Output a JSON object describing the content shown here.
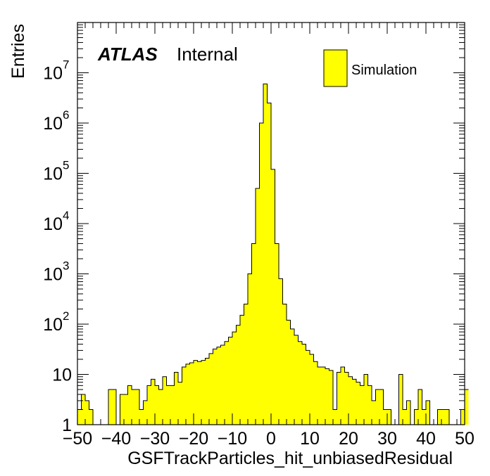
{
  "chart_data": {
    "type": "bar",
    "histogram": true,
    "xlabel": "GSFTrackParticles_hit_unbiasedResidual",
    "ylabel": "Entries",
    "xlim": [
      -50,
      50
    ],
    "ylim": [
      1,
      100000000
    ],
    "yscale": "log",
    "bin_width": 1,
    "x_ticks": [
      "−50",
      "−40",
      "−30",
      "−20",
      "−10",
      "0",
      "10",
      "20",
      "30",
      "40",
      "50"
    ],
    "y_ticks": [
      {
        "base": "1",
        "exp": ""
      },
      {
        "base": "10",
        "exp": ""
      },
      {
        "base": "10",
        "exp": "2"
      },
      {
        "base": "10",
        "exp": "3"
      },
      {
        "base": "10",
        "exp": "4"
      },
      {
        "base": "10",
        "exp": "5"
      },
      {
        "base": "10",
        "exp": "6"
      },
      {
        "base": "10",
        "exp": "7"
      }
    ],
    "bin_edges_start": -50,
    "values": [
      2,
      4,
      3,
      2,
      1,
      0,
      0,
      1,
      5,
      5,
      1,
      4,
      4,
      6,
      5,
      5,
      2,
      3,
      6,
      8,
      6,
      5,
      9,
      6,
      6,
      11,
      7,
      14,
      16,
      17,
      19,
      18,
      19,
      21,
      26,
      32,
      35,
      38,
      45,
      55,
      70,
      95,
      150,
      250,
      1000,
      4000,
      50000,
      1000000,
      6000000,
      2500000,
      120000,
      4000,
      800,
      250,
      120,
      80,
      60,
      45,
      40,
      30,
      25,
      18,
      14,
      14,
      13,
      12,
      2,
      11,
      14,
      11,
      9,
      8,
      7,
      6,
      10,
      6,
      3,
      5,
      5,
      2,
      2,
      0,
      0,
      10,
      2,
      3,
      1,
      2,
      5,
      2,
      3,
      1,
      0,
      2,
      2,
      2,
      1,
      1,
      0,
      2,
      5
    ],
    "series": [
      {
        "name": "Simulation",
        "color": "#ffff00"
      }
    ],
    "legend_position": "top-right",
    "grid": false
  },
  "annotation": {
    "atlas": "ATLAS",
    "label": "Internal"
  },
  "legend": {
    "entry": "Simulation"
  }
}
